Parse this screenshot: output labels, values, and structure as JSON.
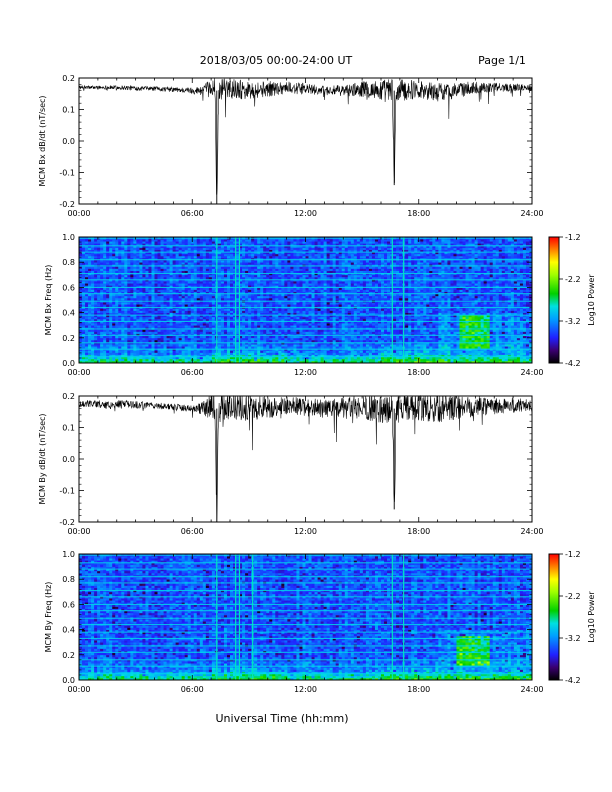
{
  "header": {
    "title": "2018/03/05  00:00-24:00 UT",
    "page": "Page 1/1"
  },
  "footer": {
    "xlabel": "Universal Time (hh:mm)"
  },
  "chart_data": [
    {
      "type": "line",
      "panel": "bx-timeseries",
      "ylabel": "MCM Bx dB/dt (nT/sec)",
      "xlim": [
        0,
        24
      ],
      "ylim": [
        -0.2,
        0.2
      ],
      "x_ticks": [
        "00:00",
        "06:00",
        "12:00",
        "18:00",
        "24:00"
      ],
      "y_ticks": [
        "-0.2",
        "-0.1",
        "0.0",
        "0.1",
        "0.2"
      ],
      "series": [
        {
          "x": [
            0,
            1,
            2,
            3,
            4,
            5,
            6,
            6.5,
            7,
            7.2,
            7.3,
            7.4,
            7.6,
            8,
            9,
            10,
            11,
            12,
            13,
            14,
            15,
            16,
            16.6,
            16.7,
            16.8,
            17,
            18,
            19,
            20,
            21,
            22,
            23,
            24
          ],
          "y": [
            0.17,
            0.17,
            0.17,
            0.168,
            0.166,
            0.163,
            0.16,
            0.16,
            0.165,
            0.17,
            -0.2,
            0.15,
            0.17,
            0.17,
            0.16,
            0.165,
            0.17,
            0.165,
            0.16,
            0.16,
            0.165,
            0.16,
            0.16,
            -0.14,
            0.15,
            0.16,
            0.165,
            0.155,
            0.16,
            0.17,
            0.17,
            0.17,
            0.17
          ],
          "amplitude": [
            0.006,
            0.006,
            0.007,
            0.007,
            0.007,
            0.008,
            0.01,
            0.015,
            0.03,
            0.035,
            0.035,
            0.035,
            0.035,
            0.035,
            0.03,
            0.025,
            0.02,
            0.018,
            0.015,
            0.018,
            0.025,
            0.035,
            0.04,
            0.04,
            0.04,
            0.035,
            0.03,
            0.03,
            0.025,
            0.02,
            0.015,
            0.012,
            0.01
          ]
        }
      ]
    },
    {
      "type": "heatmap",
      "panel": "bx-spectrogram",
      "ylabel": "MCM Bx Freq (Hz)",
      "colorbar_label": "Log10 Power",
      "colorbar_ticks": [
        "-1.2",
        "-2.2",
        "-3.2",
        "-4.2"
      ],
      "zlim": [
        -4.2,
        -1.2
      ],
      "xlim": [
        0,
        24
      ],
      "ylim": [
        0,
        1.0
      ],
      "x_ticks": [
        "00:00",
        "06:00",
        "12:00",
        "18:00",
        "24:00"
      ],
      "y_ticks": [
        "0.0",
        "0.2",
        "0.4",
        "0.6",
        "0.8",
        "1.0"
      ],
      "harmonic_lines_hz": [
        0.05,
        0.11,
        0.16,
        0.22,
        0.27,
        0.33,
        0.38,
        0.44,
        0.49,
        0.55,
        0.6,
        0.66,
        0.71,
        0.77,
        0.82,
        0.88,
        0.93,
        0.99
      ],
      "vertical_events_ut": [
        7.3,
        8.3,
        8.5,
        16.6,
        17.2
      ],
      "activity_patch": {
        "x": [
          20.2,
          21.8
        ],
        "y": [
          0.12,
          0.38
        ]
      }
    },
    {
      "type": "line",
      "panel": "by-timeseries",
      "ylabel": "MCM By dB/dt (nT/sec)",
      "xlim": [
        0,
        24
      ],
      "ylim": [
        -0.2,
        0.2
      ],
      "x_ticks": [
        "00:00",
        "06:00",
        "12:00",
        "18:00",
        "24:00"
      ],
      "y_ticks": [
        "-0.2",
        "-0.1",
        "0.0",
        "0.1",
        "0.2"
      ],
      "series": [
        {
          "x": [
            0,
            1,
            1.6,
            2,
            3,
            4,
            5,
            6,
            6.5,
            7,
            7.2,
            7.3,
            7.4,
            7.6,
            8,
            9,
            10,
            11,
            12,
            13,
            14,
            15,
            16,
            16.6,
            16.7,
            16.8,
            17,
            18,
            19,
            20,
            21,
            22,
            23,
            24
          ],
          "y": [
            0.175,
            0.175,
            0.17,
            0.175,
            0.172,
            0.17,
            0.165,
            0.16,
            0.16,
            0.165,
            0.17,
            -0.2,
            0.15,
            0.17,
            0.17,
            0.16,
            0.165,
            0.17,
            0.165,
            0.16,
            0.16,
            0.165,
            0.16,
            0.16,
            -0.16,
            0.15,
            0.16,
            0.165,
            0.16,
            0.165,
            0.17,
            0.17,
            0.17,
            0.17
          ],
          "amplitude": [
            0.01,
            0.012,
            0.012,
            0.012,
            0.012,
            0.01,
            0.01,
            0.012,
            0.02,
            0.04,
            0.045,
            0.045,
            0.045,
            0.045,
            0.045,
            0.04,
            0.035,
            0.03,
            0.03,
            0.03,
            0.035,
            0.04,
            0.045,
            0.05,
            0.05,
            0.05,
            0.045,
            0.045,
            0.045,
            0.04,
            0.035,
            0.03,
            0.025,
            0.02
          ]
        }
      ]
    },
    {
      "type": "heatmap",
      "panel": "by-spectrogram",
      "ylabel": "MCM By Freq (Hz)",
      "colorbar_label": "Log10 Power",
      "colorbar_ticks": [
        "-1.2",
        "-2.2",
        "-3.2",
        "-4.2"
      ],
      "zlim": [
        -4.2,
        -1.2
      ],
      "xlim": [
        0,
        24
      ],
      "ylim": [
        0,
        1.0
      ],
      "x_ticks": [
        "00:00",
        "06:00",
        "12:00",
        "18:00",
        "24:00"
      ],
      "y_ticks": [
        "0.0",
        "0.2",
        "0.4",
        "0.6",
        "0.8",
        "1.0"
      ],
      "harmonic_lines_hz": [
        0.05,
        0.11,
        0.16,
        0.22,
        0.27,
        0.33,
        0.38,
        0.44,
        0.49,
        0.55,
        0.6,
        0.66,
        0.71,
        0.77,
        0.82,
        0.88,
        0.93,
        0.99
      ],
      "vertical_events_ut": [
        7.3,
        8.3,
        8.5,
        9.2,
        16.6,
        17.2
      ],
      "activity_patch": {
        "x": [
          20.0,
          21.8
        ],
        "y": [
          0.12,
          0.35
        ]
      }
    }
  ]
}
